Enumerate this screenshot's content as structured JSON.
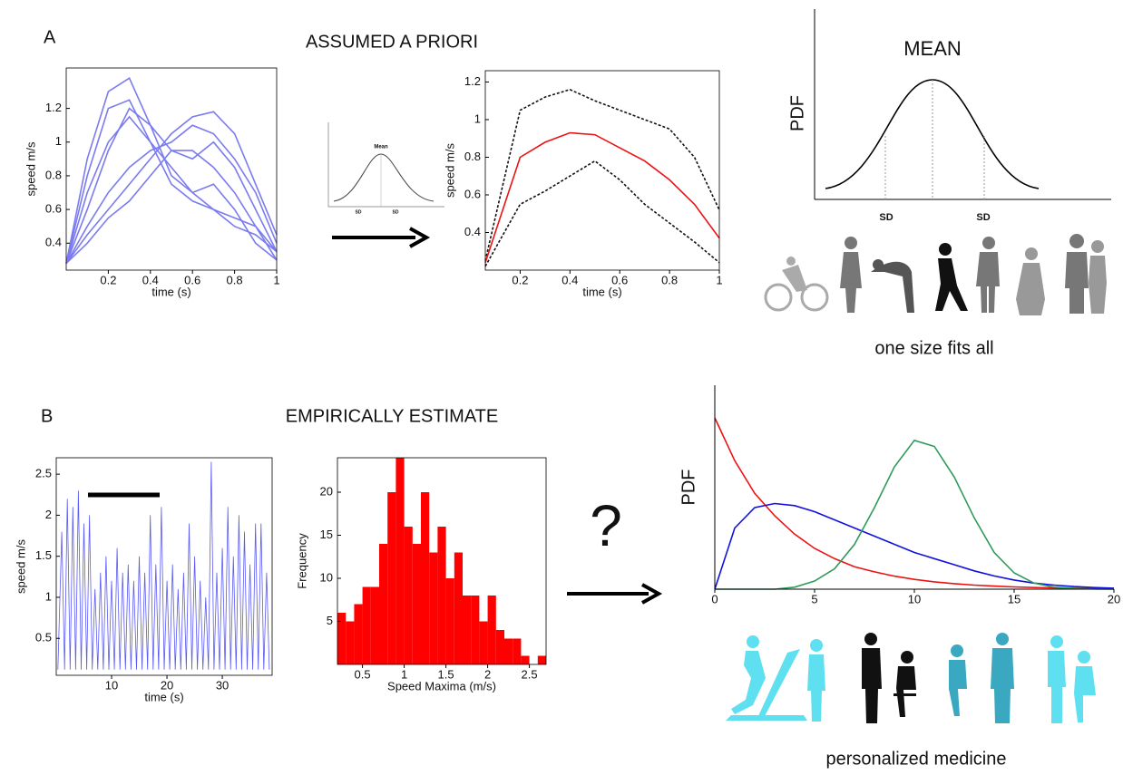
{
  "figure": {
    "panel_a": "A",
    "title_a": "ASSUMED A PRIORI",
    "caption_a": "one size fits all",
    "panel_b": "B",
    "title_b": "EMPIRICALLY ESTIMATE",
    "question": "?",
    "caption_b": "personalized medicine"
  },
  "mini_pdf": {
    "title": "Mean",
    "sd_left": "SD",
    "sd_right": "SD"
  },
  "pdf_diagram": {
    "title": "MEAN",
    "ylabel": "PDF",
    "sd_left": "SD",
    "sd_right": "SD"
  },
  "chart_data": [
    {
      "type": "line",
      "xlabel": "time (s)",
      "ylabel": "speed m/s",
      "box": true,
      "xlim": [
        0,
        1
      ],
      "ylim": [
        0.24,
        1.44
      ],
      "xticks": [
        0.2,
        0.4,
        0.6,
        0.8,
        1
      ],
      "yticks": [
        0.4,
        0.6,
        0.8,
        1,
        1.2
      ],
      "x": [
        0,
        0.1,
        0.2,
        0.3,
        0.4,
        0.5,
        0.6,
        0.7,
        0.8,
        0.9,
        1
      ],
      "series": [
        {
          "color": "#7b7bf0",
          "values": [
            0.28,
            0.9,
            1.3,
            1.38,
            1.1,
            0.8,
            0.7,
            0.75,
            0.6,
            0.4,
            0.3
          ]
        },
        {
          "color": "#7b7bf0",
          "values": [
            0.28,
            0.6,
            0.95,
            1.2,
            1.1,
            0.95,
            0.9,
            1.0,
            0.85,
            0.6,
            0.35
          ]
        },
        {
          "color": "#7b7bf0",
          "values": [
            0.28,
            0.5,
            0.7,
            0.85,
            0.95,
            1.0,
            1.1,
            1.05,
            0.9,
            0.7,
            0.4
          ]
        },
        {
          "color": "#7b7bf0",
          "values": [
            0.28,
            0.45,
            0.6,
            0.75,
            0.9,
            1.05,
            1.15,
            1.18,
            1.05,
            0.75,
            0.45
          ]
        },
        {
          "color": "#7b7bf0",
          "values": [
            0.28,
            0.7,
            1.0,
            1.15,
            1.0,
            0.85,
            0.7,
            0.6,
            0.5,
            0.45,
            0.35
          ]
        },
        {
          "color": "#7b7bf0",
          "values": [
            0.28,
            0.4,
            0.55,
            0.65,
            0.8,
            0.95,
            0.95,
            0.85,
            0.7,
            0.5,
            0.3
          ]
        },
        {
          "color": "#7b7bf0",
          "values": [
            0.28,
            0.8,
            1.2,
            1.25,
            1.0,
            0.75,
            0.65,
            0.6,
            0.55,
            0.5,
            0.35
          ]
        }
      ]
    },
    {
      "type": "line",
      "xlabel": "time (s)",
      "ylabel": "speed m/s",
      "box": true,
      "xlim": [
        0.06,
        1
      ],
      "ylim": [
        0.2,
        1.26
      ],
      "xticks": [
        0.2,
        0.4,
        0.6,
        0.8,
        1
      ],
      "yticks": [
        0.4,
        0.6,
        0.8,
        1,
        1.2
      ],
      "x": [
        0.06,
        0.2,
        0.3,
        0.4,
        0.5,
        0.6,
        0.7,
        0.8,
        0.9,
        1
      ],
      "series": [
        {
          "color": "#111111",
          "dashed": true,
          "values": [
            0.25,
            1.05,
            1.12,
            1.16,
            1.1,
            1.05,
            1.0,
            0.95,
            0.8,
            0.52
          ]
        },
        {
          "color": "#ee1111",
          "values": [
            0.24,
            0.8,
            0.88,
            0.93,
            0.92,
            0.85,
            0.78,
            0.68,
            0.55,
            0.37
          ]
        },
        {
          "color": "#111111",
          "dashed": true,
          "values": [
            0.22,
            0.55,
            0.62,
            0.7,
            0.78,
            0.68,
            0.55,
            0.45,
            0.35,
            0.24
          ]
        }
      ]
    },
    {
      "type": "line",
      "xlabel": "time (s)",
      "ylabel": "speed m/s",
      "box": true,
      "xlim": [
        0,
        39
      ],
      "ylim": [
        0.05,
        2.7
      ],
      "xticks": [
        10,
        20,
        30
      ],
      "yticks": [
        0.5,
        1,
        1.5,
        2,
        2.5
      ],
      "x": [
        0.3,
        1,
        1.5,
        2,
        2.5,
        3,
        3.5,
        4,
        4.5,
        5,
        5.5,
        6,
        6.5,
        7,
        7.5,
        8,
        8.5,
        9,
        9.5,
        10,
        10.5,
        11,
        11.5,
        12,
        12.5,
        13,
        13.5,
        14,
        14.5,
        15,
        15.5,
        16,
        16.5,
        17,
        17.5,
        18,
        18.5,
        19,
        19.5,
        20,
        20.5,
        21,
        21.5,
        22,
        22.5,
        23,
        23.5,
        24,
        24.5,
        25,
        25.5,
        26,
        26.5,
        27,
        27.5,
        28,
        28.5,
        29,
        29.5,
        30,
        30.5,
        31,
        31.5,
        32,
        32.5,
        33,
        33.5,
        34,
        34.5,
        35,
        35.5,
        36,
        36.5,
        37,
        37.5,
        38,
        38.5
      ],
      "series": [
        {
          "color": "#5a5af5",
          "values": [
            0.12,
            1.8,
            0.12,
            2.2,
            0.12,
            2.1,
            0.12,
            2.3,
            0.12,
            1.9,
            0.12,
            2.0,
            0.12,
            1.1,
            0.12,
            1.3,
            0.12,
            1.5,
            0.12,
            1.2,
            0.12,
            1.6,
            0.12,
            1.3,
            0.12,
            1.4,
            0.12,
            1.2,
            0.12,
            1.5,
            0.12,
            1.3,
            0.12,
            2.0,
            0.12,
            1.4,
            0.12,
            2.1,
            0.12,
            1.2,
            0.12,
            1.4,
            0.12,
            1.1,
            0.12,
            1.3,
            0.12,
            1.9,
            0.12,
            1.5,
            0.12,
            1.2,
            0.12,
            1.0,
            0.12,
            2.65,
            0.12,
            1.3,
            0.12,
            1.6,
            0.12,
            2.1,
            0.12,
            1.5,
            0.12,
            2.0,
            0.12,
            1.8,
            0.12,
            1.4,
            0.12,
            1.9,
            0.12,
            1.9,
            0.12,
            1.3,
            0.12
          ]
        }
      ]
    },
    {
      "type": "histogram",
      "xlabel": "Speed Maxima (m/s)",
      "ylabel": "Frequency",
      "box": true,
      "color": "#ff0000",
      "xlim": [
        0.2,
        2.7
      ],
      "ylim": [
        0,
        24
      ],
      "xticks": [
        0.5,
        1,
        1.5,
        2,
        2.5
      ],
      "yticks": [
        5,
        10,
        15,
        20
      ],
      "bins": [
        0.2,
        0.3,
        0.4,
        0.5,
        0.6,
        0.7,
        0.8,
        0.9,
        1.0,
        1.1,
        1.2,
        1.3,
        1.4,
        1.5,
        1.6,
        1.7,
        1.8,
        1.9,
        2.0,
        2.1,
        2.2,
        2.3,
        2.4,
        2.5,
        2.6,
        2.7
      ],
      "values": [
        6,
        5,
        7,
        9,
        9,
        14,
        20,
        24,
        16,
        14,
        20,
        13,
        16,
        10,
        13,
        8,
        8,
        5,
        8,
        4,
        3,
        3,
        1,
        0,
        1
      ]
    },
    {
      "type": "line",
      "ylabel": "PDF",
      "box": false,
      "xlim": [
        0,
        20
      ],
      "ylim": [
        0,
        1
      ],
      "xticks": [
        0,
        5,
        10,
        15,
        20
      ],
      "x": [
        0,
        1,
        2,
        3,
        4,
        5,
        6,
        7,
        8,
        9,
        10,
        11,
        12,
        13,
        14,
        15,
        16,
        17,
        18,
        19,
        20
      ],
      "series": [
        {
          "color": "#ee1111",
          "values": [
            0.84,
            0.63,
            0.47,
            0.36,
            0.27,
            0.2,
            0.15,
            0.11,
            0.085,
            0.064,
            0.048,
            0.036,
            0.027,
            0.02,
            0.015,
            0.011,
            0.008,
            0.006,
            0.005,
            0.004,
            0.003
          ]
        },
        {
          "color": "#1111dd",
          "values": [
            0,
            0.3,
            0.4,
            0.42,
            0.41,
            0.38,
            0.34,
            0.3,
            0.26,
            0.22,
            0.18,
            0.15,
            0.12,
            0.09,
            0.065,
            0.045,
            0.03,
            0.02,
            0.013,
            0.008,
            0.005
          ]
        },
        {
          "color": "#2e9a5a",
          "values": [
            0,
            0,
            0,
            0,
            0.01,
            0.04,
            0.1,
            0.22,
            0.4,
            0.6,
            0.73,
            0.7,
            0.55,
            0.35,
            0.18,
            0.08,
            0.03,
            0.01,
            0.004,
            0.001,
            0
          ]
        }
      ]
    }
  ]
}
